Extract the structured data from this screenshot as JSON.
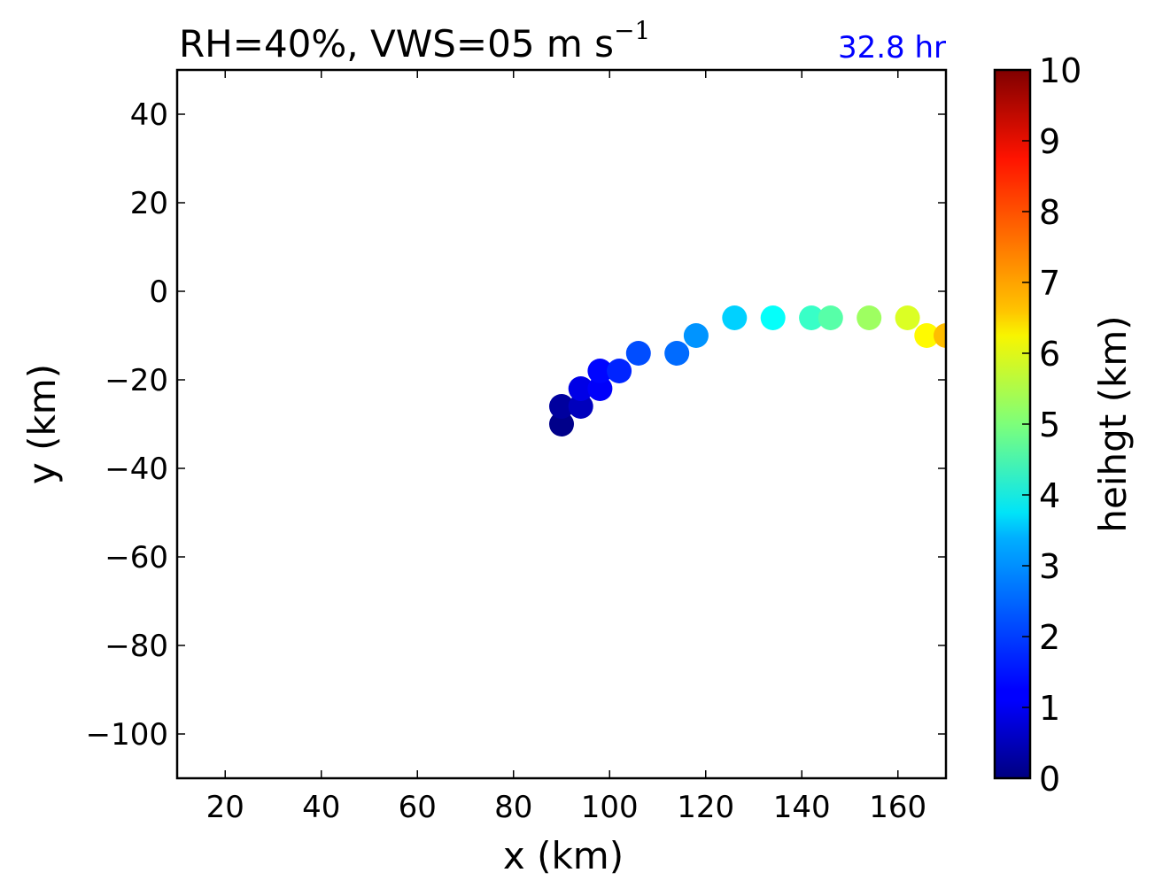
{
  "chart_data": {
    "type": "scatter",
    "title": "RH=40%, VWS=05 m s",
    "title_superscript": "−1",
    "annotation": "32.8 hr",
    "annotation_color": "#0000ff",
    "xlabel": "x (km)",
    "ylabel": "y (km)",
    "xlim": [
      10,
      170
    ],
    "ylim": [
      -110,
      50
    ],
    "xticks": [
      20,
      40,
      60,
      80,
      100,
      120,
      140,
      160
    ],
    "yticks": [
      40,
      20,
      0,
      -20,
      -40,
      -60,
      -80,
      -100
    ],
    "grid": false,
    "colormap": "jet",
    "colorbar": {
      "label": "heihgt (km)",
      "range": [
        0,
        10
      ],
      "ticks": [
        0,
        1,
        2,
        3,
        4,
        5,
        6,
        7,
        8,
        9,
        10
      ]
    },
    "points": [
      {
        "x": 90,
        "y": -30,
        "height": 0.1
      },
      {
        "x": 90,
        "y": -26,
        "height": 0.3
      },
      {
        "x": 94,
        "y": -26,
        "height": 0.6
      },
      {
        "x": 94,
        "y": -22,
        "height": 1.0
      },
      {
        "x": 98,
        "y": -22,
        "height": 1.2
      },
      {
        "x": 98,
        "y": -18,
        "height": 1.3
      },
      {
        "x": 102,
        "y": -18,
        "height": 1.6
      },
      {
        "x": 106,
        "y": -14,
        "height": 2.0
      },
      {
        "x": 114,
        "y": -14,
        "height": 2.3
      },
      {
        "x": 118,
        "y": -10,
        "height": 2.7
      },
      {
        "x": 126,
        "y": -6,
        "height": 3.3
      },
      {
        "x": 134,
        "y": -6,
        "height": 3.8
      },
      {
        "x": 142,
        "y": -6,
        "height": 4.3
      },
      {
        "x": 146,
        "y": -6,
        "height": 4.6
      },
      {
        "x": 154,
        "y": -6,
        "height": 5.3
      },
      {
        "x": 162,
        "y": -6,
        "height": 5.9
      },
      {
        "x": 166,
        "y": -10,
        "height": 6.3
      },
      {
        "x": 170,
        "y": -10,
        "height": 6.9
      }
    ]
  }
}
